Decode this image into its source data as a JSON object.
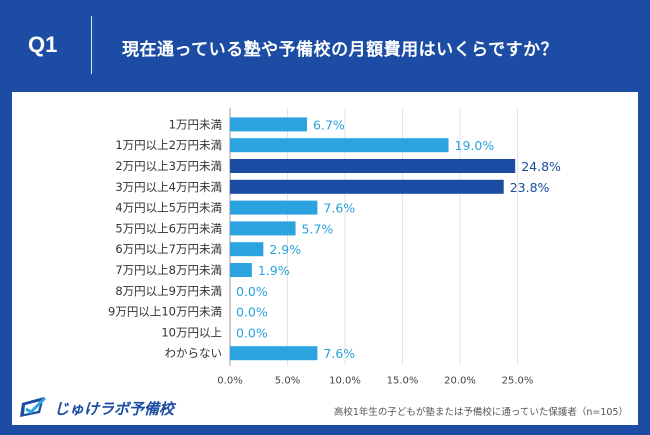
{
  "header": {
    "question_label": "Q1",
    "title": "現在通っている塾や予備校の月額費用はいくらですか？"
  },
  "chart_data": {
    "type": "bar",
    "orientation": "horizontal",
    "categories": [
      "1万円未満",
      "1万円以上2万円未満",
      "2万円以上3万円未満",
      "3万円以上4万円未満",
      "4万円以上5万円未満",
      "5万円以上6万円未満",
      "6万円以上7万円未満",
      "7万円以上8万円未満",
      "8万円以上9万円未満",
      "9万円以上10万円未満",
      "10万円以上",
      "わからない"
    ],
    "values": [
      6.7,
      19.0,
      24.8,
      23.8,
      7.6,
      5.7,
      2.9,
      1.9,
      0.0,
      0.0,
      0.0,
      7.6
    ],
    "value_labels": [
      "6.7%",
      "19.0%",
      "24.8%",
      "23.8%",
      "7.6%",
      "5.7%",
      "2.9%",
      "1.9%",
      "0.0%",
      "0.0%",
      "0.0%",
      "7.6%"
    ],
    "highlight": [
      false,
      false,
      true,
      true,
      false,
      false,
      false,
      false,
      false,
      false,
      false,
      false
    ],
    "xlim": [
      0,
      25
    ],
    "xticks": [
      "0.0%",
      "5.0%",
      "10.0%",
      "15.0%",
      "20.0%",
      "25.0%"
    ],
    "grid": true,
    "colors": {
      "normal": "#2aa3de",
      "highlight": "#1a4ca3",
      "label_normal": "#2aa3de",
      "label_highlight": "#1a4ca3"
    }
  },
  "footer": {
    "logo_text": "じゅけラボ予備校",
    "source": "高校1年生の子どもが塾または予備校に通っていた保護者（n=105）"
  }
}
